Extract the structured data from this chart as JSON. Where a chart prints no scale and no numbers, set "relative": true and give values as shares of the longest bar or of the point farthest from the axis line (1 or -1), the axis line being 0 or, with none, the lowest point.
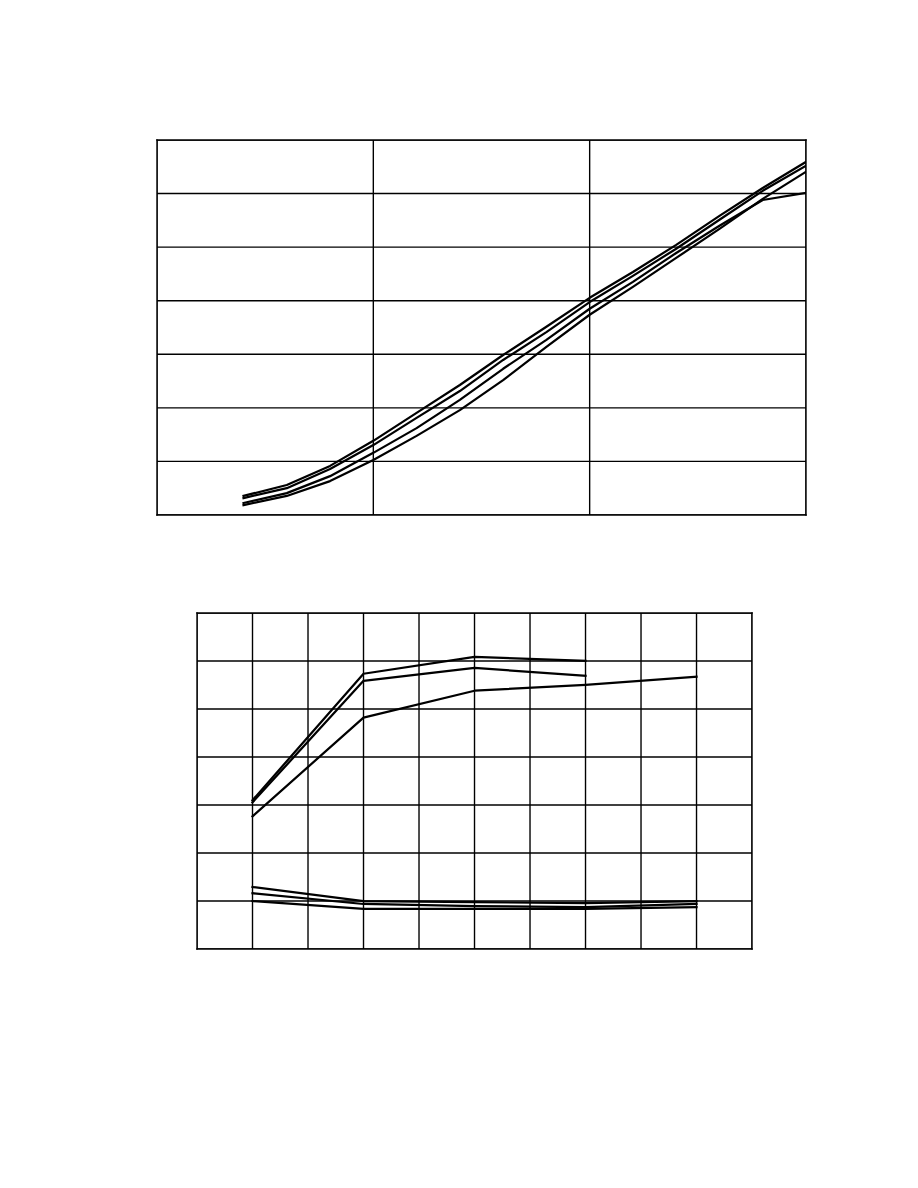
{
  "chart_data": [
    {
      "type": "line",
      "relative": true,
      "grid": true,
      "tick_labels": false,
      "categories": [
        null,
        null,
        null,
        null,
        null,
        null,
        null,
        null,
        null,
        null,
        null,
        null,
        null,
        null,
        null,
        null
      ],
      "series": [
        {
          "color": "#000000",
          "values": [
            null,
            null,
            0.054,
            0.085,
            0.139,
            0.21,
            0.289,
            0.368,
            0.453,
            0.533,
            0.615,
            0.688,
            0.765,
            0.847,
            0.926,
            1.0
          ]
        },
        {
          "color": "#000000",
          "values": [
            null,
            null,
            0.048,
            0.076,
            0.13,
            0.198,
            0.275,
            0.351,
            0.439,
            0.518,
            0.603,
            0.677,
            0.754,
            0.836,
            0.918,
            0.989
          ]
        },
        {
          "color": "#000000",
          "values": [
            null,
            null,
            0.034,
            0.062,
            0.11,
            0.176,
            0.246,
            0.326,
            0.414,
            0.496,
            0.584,
            0.66,
            0.742,
            0.819,
            0.892,
            0.912
          ]
        },
        {
          "color": "#000000",
          "values": [
            null,
            null,
            0.028,
            0.054,
            0.096,
            0.156,
            0.224,
            0.297,
            0.382,
            0.476,
            0.567,
            0.646,
            0.728,
            0.81,
            0.895,
            0.972
          ]
        }
      ]
    },
    {
      "type": "line",
      "relative": true,
      "grid": true,
      "tick_labels": false,
      "categories": [
        null,
        null,
        null,
        null,
        null
      ],
      "series": [
        {
          "color": "#000000",
          "values": [
            0.509,
            0.942,
            1.0,
            0.986,
            null
          ]
        },
        {
          "color": "#000000",
          "values": [
            0.502,
            0.918,
            0.962,
            0.935,
            null
          ]
        },
        {
          "color": "#000000",
          "values": [
            0.454,
            0.792,
            0.884,
            0.904,
            0.932
          ]
        },
        {
          "color": "#000000",
          "values": [
            0.212,
            0.164,
            0.16,
            0.157,
            0.164
          ]
        },
        {
          "color": "#000000",
          "values": [
            0.191,
            0.154,
            0.147,
            0.143,
            0.154
          ]
        },
        {
          "color": "#000000",
          "values": [
            0.164,
            0.137,
            0.137,
            0.137,
            0.143
          ]
        }
      ]
    }
  ]
}
